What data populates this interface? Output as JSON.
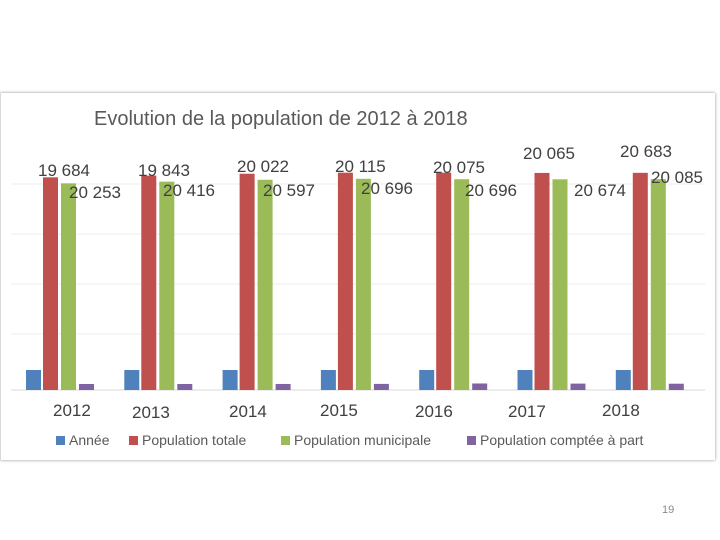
{
  "page": {
    "number": "19"
  },
  "chart_data": {
    "type": "bar",
    "title": "Evolution de la population de 2012 à 2018",
    "xlabel": "",
    "ylabel": "",
    "ylim": [
      0,
      20000
    ],
    "grid": true,
    "legend_position": "bottom",
    "categories": [
      "2012",
      "2013",
      "2014",
      "2015",
      "2016",
      "2017",
      "2018"
    ],
    "series": [
      {
        "name": "Année",
        "color": "#4f81bd",
        "values": [
          2012,
          2013,
          2014,
          2015,
          2016,
          2017,
          2018
        ]
      },
      {
        "name": "Population totale",
        "color": "#c0504d",
        "values": [
          20253,
          20416,
          20597,
          20696,
          20696,
          20674,
          20683
        ]
      },
      {
        "name": "Population municipale",
        "color": "#9bbb59",
        "values": [
          19684,
          19843,
          20022,
          20115,
          20075,
          20065,
          20085
        ]
      },
      {
        "name": "Population comptée à part",
        "color": "#8064a2",
        "values": [
          569,
          573,
          575,
          581,
          621,
          609,
          598
        ]
      }
    ],
    "annotations": [
      [
        "19 684",
        "20 253"
      ],
      [
        "19 843",
        "20 416"
      ],
      [
        "20 022",
        "20 597"
      ],
      [
        "20 115",
        "20 696"
      ],
      [
        "20 075",
        "20 696"
      ],
      [
        "20 065",
        "20 674"
      ],
      [
        "20 683",
        "20 085"
      ]
    ]
  }
}
